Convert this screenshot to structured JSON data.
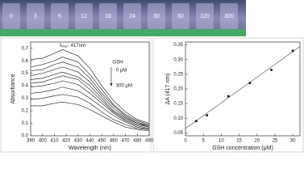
{
  "image_strip": {
    "labels": [
      "0",
      "3",
      "6",
      "12",
      "18",
      "24",
      "30",
      "60",
      "120",
      "300"
    ]
  },
  "chart_data": [
    {
      "type": "line",
      "xlabel": "Wavelength (nm)",
      "ylabel": "Absorbance",
      "annotations": {
        "lambda": "λ",
        "lambda_sub": "max",
        "peak": ": 417nm",
        "reagent": "GSH",
        "start": "0 μM",
        "end": "300 μM"
      },
      "x": [
        390,
        400,
        410,
        417,
        430,
        440,
        450,
        460,
        470,
        480,
        490
      ],
      "series": [
        {
          "color": "#333333",
          "values": [
            0.61,
            0.62,
            0.66,
            0.69,
            0.64,
            0.54,
            0.4,
            0.28,
            0.19,
            0.13,
            0.1
          ]
        },
        {
          "color": "#333333",
          "values": [
            0.55,
            0.57,
            0.6,
            0.63,
            0.59,
            0.49,
            0.37,
            0.25,
            0.17,
            0.12,
            0.09
          ]
        },
        {
          "color": "#333333",
          "values": [
            0.52,
            0.53,
            0.57,
            0.59,
            0.55,
            0.46,
            0.34,
            0.24,
            0.16,
            0.11,
            0.08
          ]
        },
        {
          "color": "#333333",
          "values": [
            0.48,
            0.5,
            0.53,
            0.55,
            0.51,
            0.43,
            0.32,
            0.22,
            0.15,
            0.1,
            0.08
          ]
        },
        {
          "color": "#333333",
          "values": [
            0.45,
            0.46,
            0.49,
            0.51,
            0.47,
            0.4,
            0.3,
            0.2,
            0.14,
            0.1,
            0.07
          ]
        },
        {
          "color": "#333333",
          "values": [
            0.42,
            0.43,
            0.46,
            0.48,
            0.45,
            0.37,
            0.28,
            0.19,
            0.13,
            0.09,
            0.07
          ]
        },
        {
          "color": "#333333",
          "values": [
            0.39,
            0.4,
            0.42,
            0.44,
            0.41,
            0.34,
            0.26,
            0.18,
            0.12,
            0.08,
            0.06
          ]
        },
        {
          "color": "#333333",
          "values": [
            0.34,
            0.35,
            0.37,
            0.39,
            0.36,
            0.3,
            0.23,
            0.16,
            0.11,
            0.07,
            0.05
          ]
        },
        {
          "color": "#333333",
          "values": [
            0.29,
            0.3,
            0.32,
            0.33,
            0.31,
            0.26,
            0.19,
            0.13,
            0.09,
            0.06,
            0.05
          ]
        },
        {
          "color": "#333333",
          "values": [
            0.24,
            0.24,
            0.26,
            0.27,
            0.25,
            0.21,
            0.16,
            0.11,
            0.07,
            0.05,
            0.04
          ]
        }
      ],
      "xlim": [
        390,
        490
      ],
      "xticks": [
        390,
        400,
        410,
        420,
        430,
        440,
        450,
        460,
        470,
        480,
        490
      ],
      "ylim": [
        0,
        0.75
      ],
      "yticks": [
        {
          "value": 0,
          "label": "0.0"
        },
        0.1,
        0.2,
        0.3,
        0.4,
        0.5,
        0.6,
        0.7
      ]
    },
    {
      "type": "scatter",
      "xlabel": "GSH concentration (μM)",
      "ylabel": "ΔA (417 nm)",
      "x": [
        3,
        6,
        12,
        18,
        24,
        30
      ],
      "values": [
        0.09,
        0.11,
        0.175,
        0.22,
        0.265,
        0.33
      ],
      "color": "#111111",
      "fit_line": {
        "x": [
          0,
          32
        ],
        "values": [
          0.065,
          0.345
        ],
        "color": "#666666"
      },
      "xlim": [
        0,
        32
      ],
      "xticks": [
        0,
        5,
        10,
        15,
        20,
        25,
        30
      ],
      "ylim": [
        0.04,
        0.36
      ],
      "yticks": [
        0.05,
        {
          "value": 0.1,
          "label": "0.10"
        },
        0.15,
        {
          "value": 0.2,
          "label": "0.20"
        },
        0.25,
        {
          "value": 0.3,
          "label": "0.30"
        },
        0.35
      ]
    }
  ]
}
